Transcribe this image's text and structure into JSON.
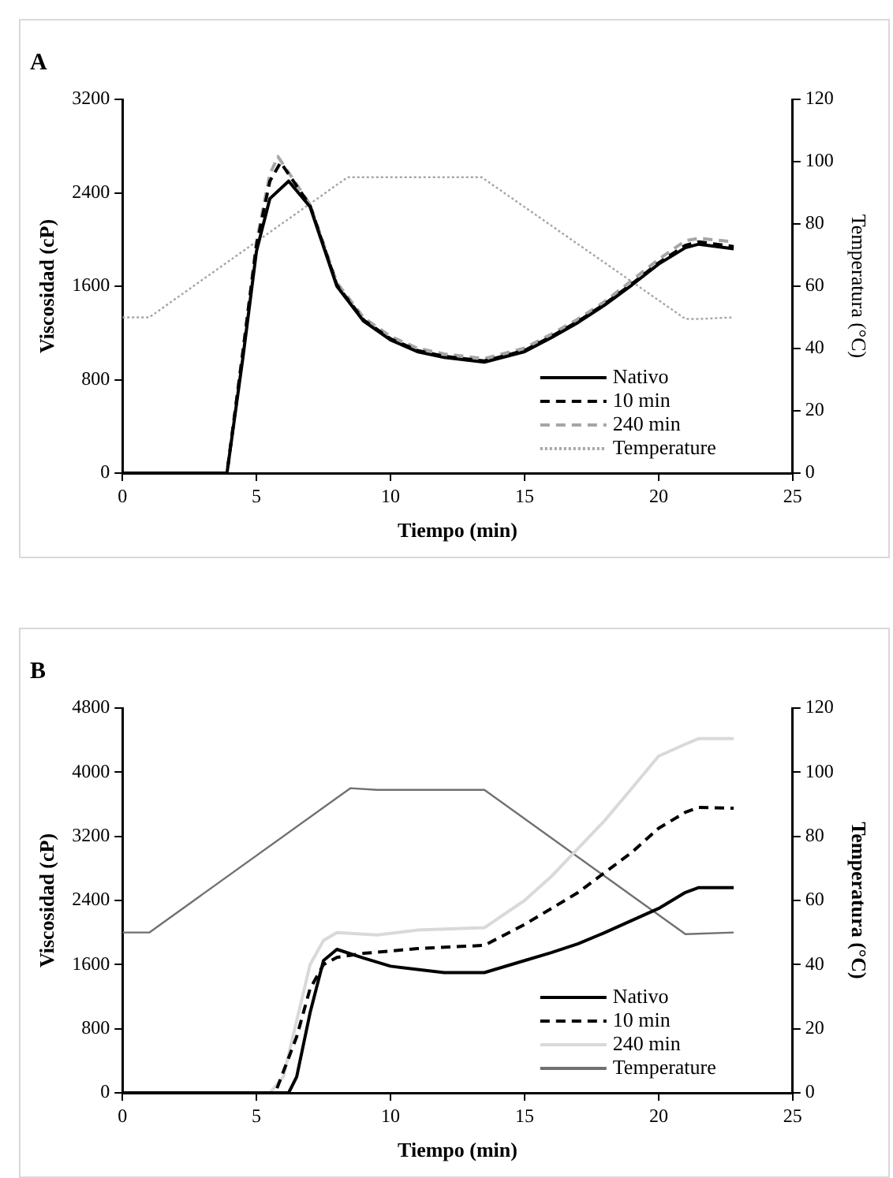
{
  "chart_data": [
    {
      "type": "line",
      "title": "A",
      "xlabel": "Tiempo (min)",
      "ylabel": "Viscosidad (cP)",
      "y2label": "Temperatura (°C)",
      "xlim": [
        0,
        25
      ],
      "xticks": [
        0,
        5,
        10,
        15,
        20,
        25
      ],
      "ylim": [
        0,
        3200
      ],
      "yticks": [
        0,
        800,
        1600,
        2400,
        3200
      ],
      "y2lim": [
        0,
        120
      ],
      "y2ticks": [
        0,
        20,
        40,
        60,
        80,
        100,
        120
      ],
      "grid": false,
      "legend": "bottom right",
      "marker": "none",
      "series": [
        {
          "name": "Nativo",
          "color": "#000000",
          "line_style": "solid",
          "x": [
            0,
            2,
            3.9,
            4.5,
            5,
            5.5,
            6.2,
            7,
            8,
            9,
            10,
            11,
            12,
            13.5,
            15,
            16,
            17,
            18,
            19,
            20,
            21,
            21.5,
            22.8
          ],
          "values": [
            0,
            0,
            0,
            1000,
            1900,
            2350,
            2500,
            2280,
            1600,
            1300,
            1140,
            1040,
            990,
            950,
            1040,
            1160,
            1290,
            1440,
            1610,
            1790,
            1930,
            1960,
            1920
          ]
        },
        {
          "name": "10 min",
          "color": "#000000",
          "line_style": "dashed",
          "x": [
            0,
            2,
            3.9,
            4.5,
            5,
            5.5,
            5.9,
            7,
            8,
            9,
            10,
            11,
            12,
            13.5,
            15,
            16,
            17,
            18,
            19,
            20,
            21,
            21.5,
            22.8
          ],
          "values": [
            0,
            0,
            0,
            1050,
            1950,
            2500,
            2660,
            2290,
            1610,
            1310,
            1150,
            1050,
            1000,
            960,
            1050,
            1170,
            1300,
            1450,
            1620,
            1800,
            1950,
            1980,
            1940
          ]
        },
        {
          "name": "240 min",
          "color": "#a6a6a6",
          "line_style": "dashed",
          "x": [
            0,
            2,
            3.9,
            4.5,
            5,
            5.5,
            5.8,
            7,
            8,
            9,
            10,
            11,
            12,
            13.5,
            15,
            16,
            17,
            18,
            19,
            20,
            21,
            21.5,
            22.8
          ],
          "values": [
            0,
            0,
            0,
            1050,
            1980,
            2560,
            2710,
            2300,
            1630,
            1330,
            1170,
            1070,
            1020,
            980,
            1070,
            1190,
            1320,
            1470,
            1650,
            1830,
            1990,
            2010,
            1980
          ]
        },
        {
          "name": "Temperature",
          "color": "#a6a6a6",
          "line_style": "dotted",
          "axis": "y2",
          "x": [
            0,
            1,
            8.4,
            13.4,
            21,
            21.5,
            22.8
          ],
          "values": [
            50,
            50,
            95,
            95,
            49.5,
            49.5,
            50
          ]
        }
      ]
    },
    {
      "type": "line",
      "title": "B",
      "xlabel": "Tiempo (min)",
      "ylabel": "Viscosidad (cP)",
      "y2label": "Temperatura (°C)",
      "xlim": [
        0,
        25
      ],
      "xticks": [
        0,
        5,
        10,
        15,
        20,
        25
      ],
      "ylim": [
        0,
        4800
      ],
      "yticks": [
        0,
        800,
        1600,
        2400,
        3200,
        4000,
        4800
      ],
      "y2lim": [
        0,
        120
      ],
      "y2ticks": [
        0,
        20,
        40,
        60,
        80,
        100,
        120
      ],
      "grid": false,
      "legend": "bottom right",
      "marker": "none",
      "series": [
        {
          "name": "Nativo",
          "color": "#000000",
          "line_style": "solid",
          "x": [
            0,
            3,
            6.2,
            6.5,
            7,
            7.5,
            8,
            9,
            10,
            11,
            12,
            13.5,
            15,
            16,
            17,
            18,
            19,
            20,
            21,
            21.5,
            22.8
          ],
          "values": [
            0,
            0,
            0,
            200,
            1000,
            1650,
            1790,
            1680,
            1580,
            1540,
            1500,
            1500,
            1650,
            1750,
            1860,
            2000,
            2150,
            2300,
            2500,
            2560,
            2560
          ]
        },
        {
          "name": "10 min",
          "color": "#000000",
          "line_style": "dashed",
          "x": [
            0,
            3,
            5.7,
            6.5,
            7,
            7.5,
            8,
            9,
            11,
            13.5,
            15,
            16,
            17,
            18,
            19,
            20,
            21,
            21.5,
            22.8
          ],
          "values": [
            0,
            0,
            0,
            700,
            1300,
            1600,
            1690,
            1740,
            1800,
            1840,
            2100,
            2300,
            2500,
            2750,
            3000,
            3300,
            3500,
            3560,
            3550
          ]
        },
        {
          "name": "240 min",
          "color": "#d9d9d9",
          "line_style": "solid",
          "x": [
            0,
            3,
            5.5,
            6,
            6.5,
            7,
            7.5,
            8,
            9.5,
            11,
            13.5,
            15,
            16,
            17,
            18,
            19,
            20,
            21,
            21.5,
            22.8
          ],
          "values": [
            0,
            0,
            0,
            200,
            900,
            1600,
            1900,
            2000,
            1970,
            2030,
            2060,
            2400,
            2700,
            3050,
            3400,
            3800,
            4200,
            4350,
            4420,
            4420
          ]
        },
        {
          "name": "Temperature",
          "color": "#707070",
          "line_style": "solid",
          "axis": "y2",
          "x": [
            0,
            1,
            8.5,
            9.5,
            13.5,
            21,
            22.8
          ],
          "values": [
            50,
            50,
            95,
            94.5,
            94.5,
            49.5,
            50
          ]
        }
      ]
    }
  ]
}
